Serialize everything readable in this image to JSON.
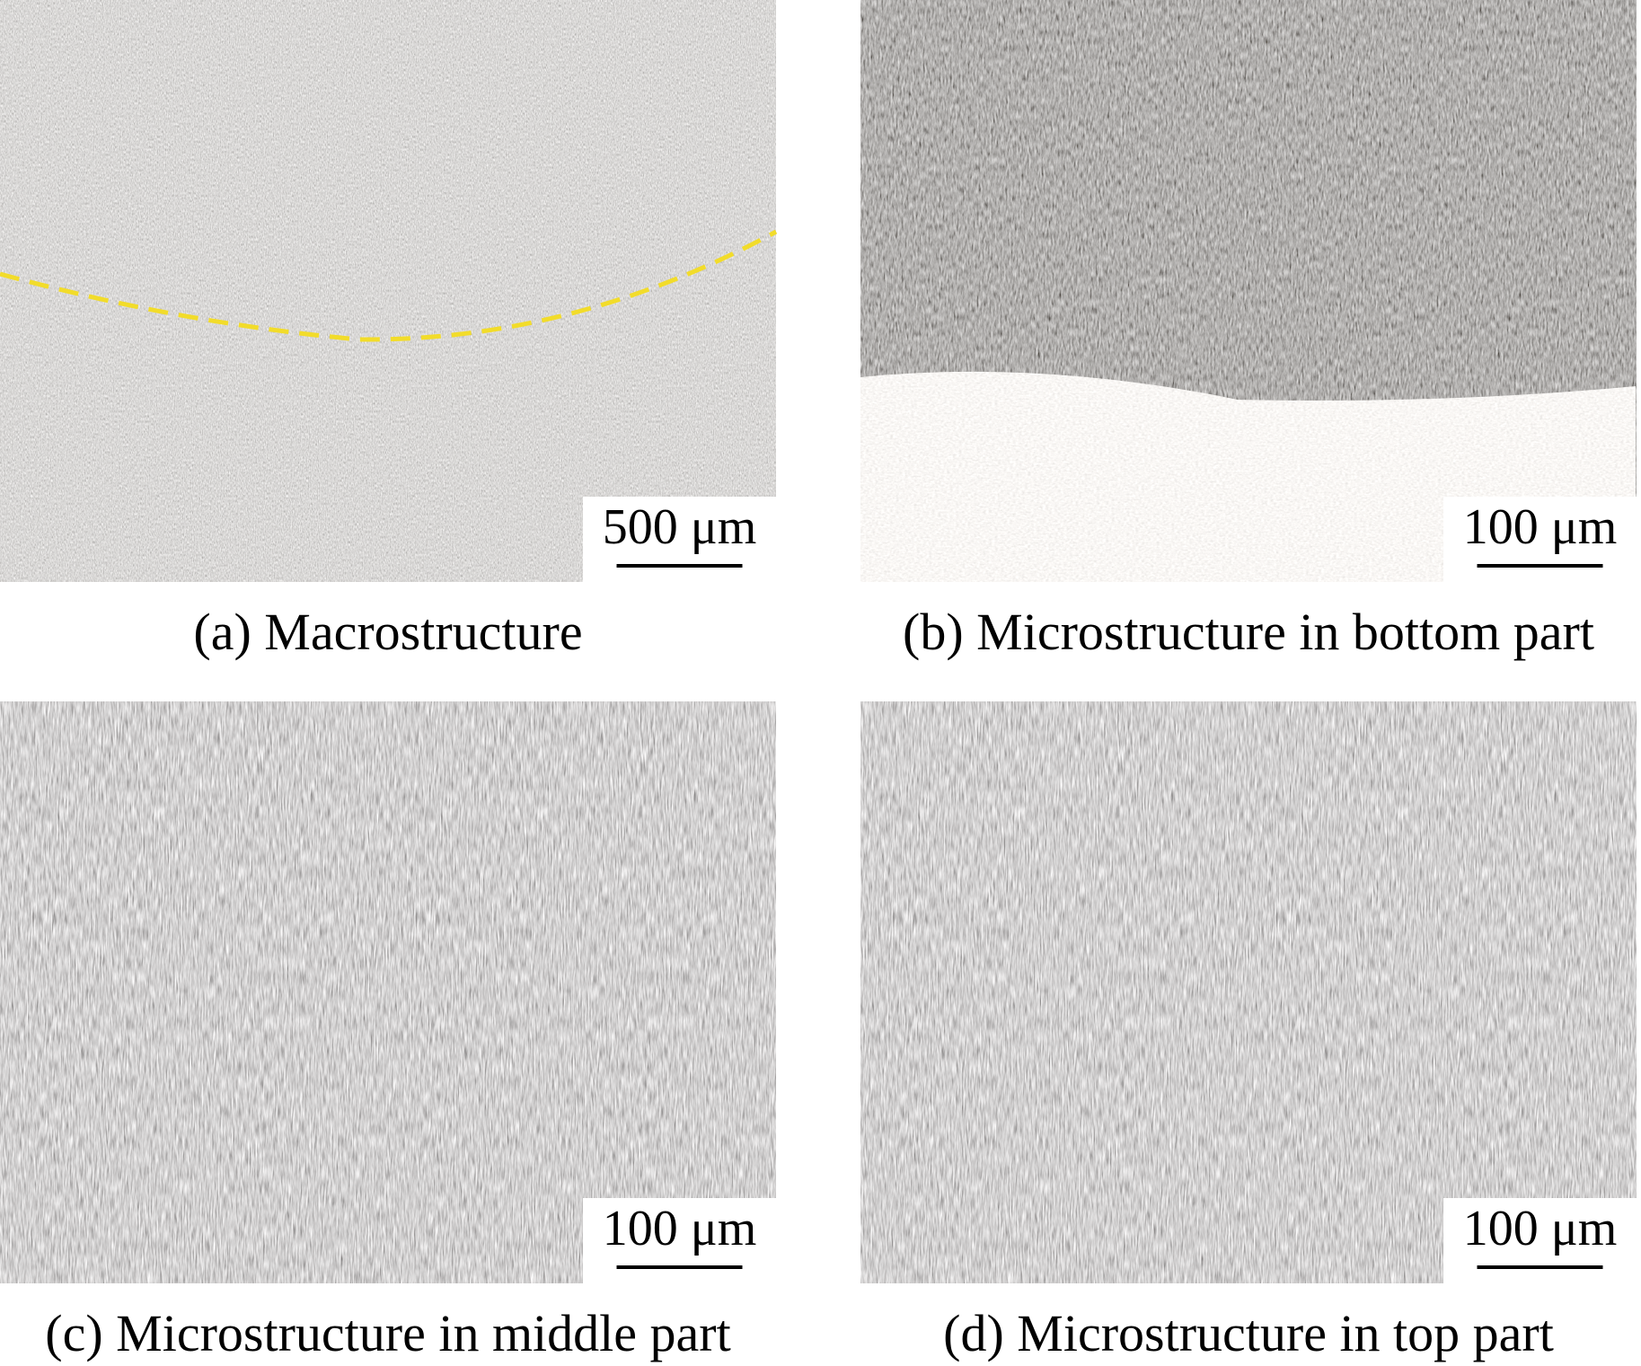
{
  "panels": [
    {
      "caption": "(a) Macrostructure",
      "scale_bar": "500 μm"
    },
    {
      "caption": "(b) Microstructure in bottom part",
      "scale_bar": "100 μm"
    },
    {
      "caption": "(c) Microstructure in middle part",
      "scale_bar": "100 μm"
    },
    {
      "caption": "(d) Microstructure in top part",
      "scale_bar": "100 μm"
    }
  ]
}
